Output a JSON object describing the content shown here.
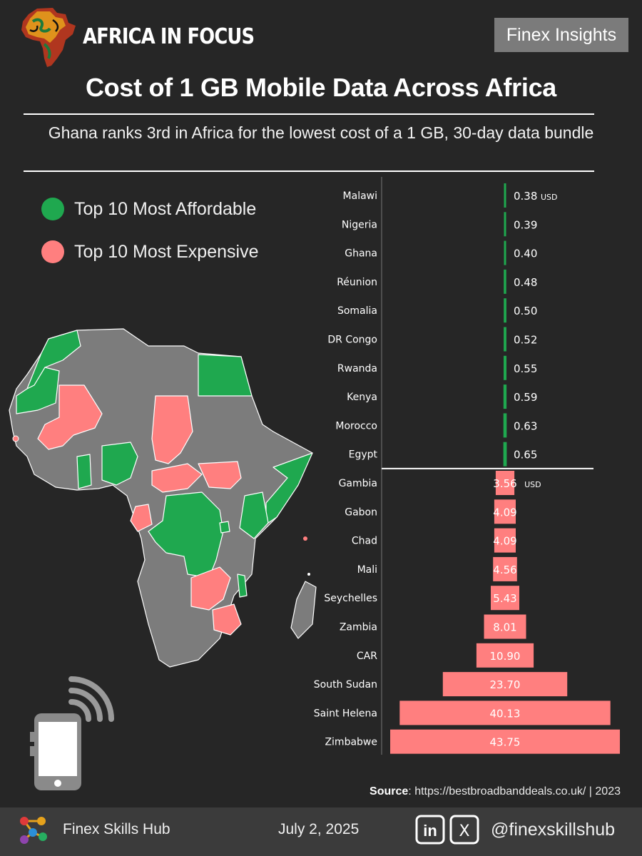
{
  "header": {
    "brand": "AFRICA IN FOCUS",
    "publisher": "Finex Insights",
    "title": "Cost of 1 GB Mobile Data Across Africa",
    "subtitle": "Ghana ranks 3rd in Africa for the lowest cost of a 1 GB, 30-day data bundle"
  },
  "legend": [
    {
      "label": "Top 10 Most Affordable",
      "color": "#1fa84f"
    },
    {
      "label": "Top 10 Most Expensive",
      "color": "#ff7f7f"
    }
  ],
  "chart_data": {
    "type": "bar",
    "orientation": "horizontal-centered",
    "unit": "USD",
    "series": [
      {
        "group": "Top 10 Most Affordable",
        "color": "#1fa84f",
        "categories": [
          "Malawi",
          "Nigeria",
          "Ghana",
          "Réunion",
          "Somalia",
          "DR Congo",
          "Rwanda",
          "Kenya",
          "Morocco",
          "Egypt"
        ],
        "values": [
          0.38,
          0.39,
          0.4,
          0.48,
          0.5,
          0.52,
          0.55,
          0.59,
          0.63,
          0.65
        ],
        "value_labels": [
          "0.38",
          "0.39",
          "0.40",
          "0.48",
          "0.50",
          "0.52",
          "0.55",
          "0.59",
          "0.63",
          "0.65"
        ]
      },
      {
        "group": "Top 10 Most Expensive",
        "color": "#ff7f7f",
        "categories": [
          "Gambia",
          "Gabon",
          "Chad",
          "Mali",
          "Seychelles",
          "Zambia",
          "CAR",
          "South Sudan",
          "Saint Helena",
          "Zimbabwe"
        ],
        "values": [
          3.56,
          4.09,
          4.09,
          4.56,
          5.43,
          8.01,
          10.9,
          23.7,
          40.13,
          43.75
        ],
        "value_labels": [
          "3.56",
          "4.09",
          "4.09",
          "4.56",
          "5.43",
          "8.01",
          "10.90",
          "23.70",
          "40.13",
          "43.75"
        ]
      }
    ]
  },
  "map": {
    "land_color": "#7c7c7c",
    "border_color": "#ffffff",
    "affordable_color": "#1fa84f",
    "expensive_color": "#ff7f7f"
  },
  "source": {
    "label": "Source",
    "text": ": https://bestbroadbanddeals.co.uk/ | 2023"
  },
  "footer": {
    "org": "Finex Skills Hub",
    "date": "July 2, 2025",
    "handle": "@finexskillshub",
    "linkedin_glyph": "in",
    "x_glyph": "X"
  },
  "icons": [
    "africa-logo-icon",
    "phone-signal-icon",
    "hub-logo-icon",
    "linkedin-icon",
    "x-icon"
  ]
}
